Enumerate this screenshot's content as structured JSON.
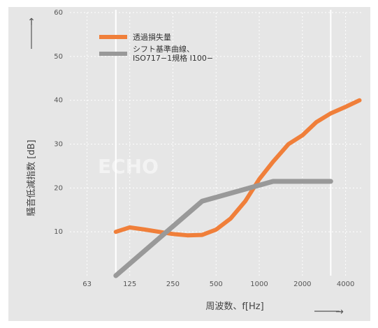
{
  "chart_data": {
    "type": "line",
    "title": "",
    "xlabel": "周波数、f[Hz]",
    "ylabel": "騒音低減指数 [dB]",
    "x_scale": "log",
    "xlim": [
      50,
      5200
    ],
    "ylim": [
      0,
      60
    ],
    "x_ticks": [
      "63",
      "125",
      "250",
      "500",
      "1000",
      "2000",
      "4000"
    ],
    "x_tick_values": [
      63,
      125,
      250,
      500,
      1000,
      2000,
      4000
    ],
    "y_ticks": [
      "10",
      "20",
      "30",
      "40",
      "50",
      "60"
    ],
    "y_tick_values": [
      10,
      20,
      30,
      40,
      50,
      60
    ],
    "grid": true,
    "legend_position": "top-left",
    "series": [
      {
        "name": "透過損失量",
        "color": "#f07f3a",
        "x": [
          100,
          125,
          160,
          200,
          250,
          315,
          400,
          500,
          630,
          800,
          1000,
          1250,
          1600,
          2000,
          2500,
          3150,
          4000,
          5000
        ],
        "y": [
          10,
          11,
          10.5,
          10,
          9.5,
          9.2,
          9.3,
          10.5,
          13,
          17,
          22,
          26,
          30,
          32,
          35,
          37,
          38.5,
          40
        ]
      },
      {
        "name": "シフト基準曲線、ISO717−1規格 I100−",
        "color": "#999999",
        "x": [
          100,
          400,
          1250,
          3150
        ],
        "y": [
          0,
          17,
          21.5,
          21.5
        ]
      }
    ],
    "arrows": {
      "y": "↑",
      "x": "→"
    }
  },
  "watermark": "ECHO"
}
